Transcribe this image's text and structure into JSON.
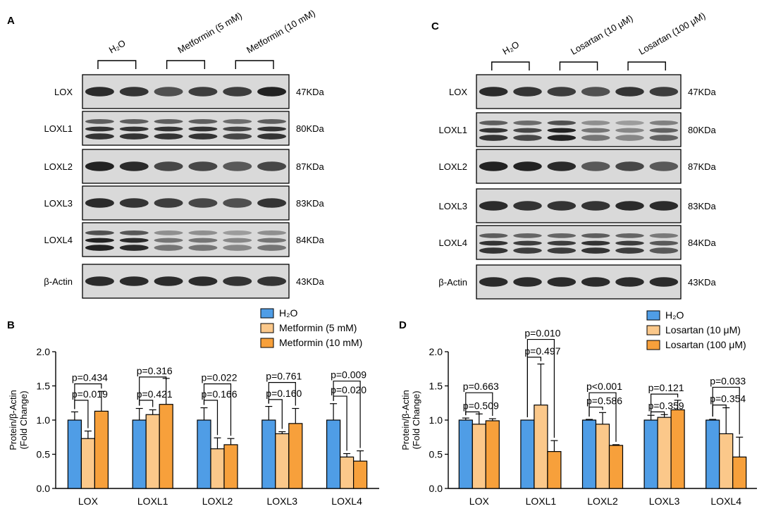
{
  "panels": {
    "A": {
      "letter": "A",
      "groups": [
        "H₂O",
        "Metformin (5 mM)",
        "Metformin (10 mM)"
      ],
      "blots": [
        {
          "label": "LOX",
          "size": "47KDa",
          "bands": [
            0.85,
            0.8,
            0.65,
            0.75,
            0.75,
            0.9
          ]
        },
        {
          "label": "LOXL1",
          "size": "80KDa",
          "bands": [
            0.8,
            0.8,
            0.8,
            0.8,
            0.7,
            0.8
          ]
        },
        {
          "label": "LOXL2",
          "size": "87KDa",
          "bands": [
            0.9,
            0.85,
            0.7,
            0.7,
            0.6,
            0.7
          ]
        },
        {
          "label": "LOXL3",
          "size": "83KDa",
          "bands": [
            0.85,
            0.8,
            0.75,
            0.7,
            0.65,
            0.8
          ]
        },
        {
          "label": "LOXL4",
          "size": "84KDa",
          "bands": [
            0.9,
            0.85,
            0.45,
            0.45,
            0.35,
            0.45
          ]
        },
        {
          "label": "β-Actin",
          "size": "43KDa",
          "bands": [
            0.85,
            0.85,
            0.85,
            0.85,
            0.8,
            0.8
          ]
        }
      ]
    },
    "C": {
      "letter": "C",
      "groups": [
        "H₂O",
        "Losartan (10 μM)",
        "Losartan (100 μM)"
      ],
      "blots": [
        {
          "label": "LOX",
          "size": "47KDa",
          "bands": [
            0.85,
            0.8,
            0.75,
            0.65,
            0.8,
            0.75
          ]
        },
        {
          "label": "LOXL1",
          "size": "80KDa",
          "bands": [
            0.8,
            0.7,
            0.9,
            0.45,
            0.35,
            0.55
          ]
        },
        {
          "label": "LOXL2",
          "size": "87KDa",
          "bands": [
            0.9,
            0.9,
            0.85,
            0.6,
            0.7,
            0.6
          ]
        },
        {
          "label": "LOXL3",
          "size": "83KDa",
          "bands": [
            0.85,
            0.8,
            0.8,
            0.8,
            0.85,
            0.85
          ]
        },
        {
          "label": "LOXL4",
          "size": "84KDa",
          "bands": [
            0.8,
            0.75,
            0.75,
            0.8,
            0.75,
            0.6
          ]
        },
        {
          "label": "β-Actin",
          "size": "43KDa",
          "bands": [
            0.85,
            0.85,
            0.85,
            0.85,
            0.85,
            0.85
          ]
        }
      ]
    }
  },
  "chart_data": [
    {
      "panel": "B",
      "type": "bar",
      "ylabel": "Protein/β-Actin",
      "ylabel2": "(Fold Change)",
      "ylim": [
        0,
        2.0
      ],
      "yticks": [
        "0.0",
        "0.5",
        "1.0",
        "1.5",
        "2.0"
      ],
      "categories": [
        "LOX",
        "LOXL1",
        "LOXL2",
        "LOXL3",
        "LOXL4"
      ],
      "legend_position": "top-right",
      "series": [
        {
          "name": "H₂O",
          "color": "#4f9de6",
          "values": [
            1.0,
            1.0,
            1.0,
            1.0,
            1.0
          ],
          "errors": [
            0.12,
            0.17,
            0.18,
            0.2,
            0.24
          ]
        },
        {
          "name": "Metformin (5 mM)",
          "color": "#fbc88a",
          "values": [
            0.73,
            1.08,
            0.58,
            0.8,
            0.46
          ],
          "errors": [
            0.11,
            0.07,
            0.16,
            0.03,
            0.05
          ]
        },
        {
          "name": "Metformin (10 mM)",
          "color": "#f7a03b",
          "values": [
            1.13,
            1.23,
            0.64,
            0.95,
            0.4
          ],
          "errors": [
            0.29,
            0.38,
            0.09,
            0.22,
            0.15
          ]
        }
      ],
      "pvalues": [
        {
          "cat": 0,
          "to": 1,
          "text": "p=0.019",
          "y": 1.29
        },
        {
          "cat": 0,
          "to": 2,
          "text": "p=0.434",
          "y": 1.53
        },
        {
          "cat": 1,
          "to": 1,
          "text": "p=0.421",
          "y": 1.29
        },
        {
          "cat": 1,
          "to": 2,
          "text": "p=0.316",
          "y": 1.63
        },
        {
          "cat": 2,
          "to": 1,
          "text": "p=0.166",
          "y": 1.29
        },
        {
          "cat": 2,
          "to": 2,
          "text": "p=0.022",
          "y": 1.53
        },
        {
          "cat": 3,
          "to": 1,
          "text": "p=0.160",
          "y": 1.3
        },
        {
          "cat": 3,
          "to": 2,
          "text": "p=0.761",
          "y": 1.55
        },
        {
          "cat": 4,
          "to": 1,
          "text": "p=0.020",
          "y": 1.35
        },
        {
          "cat": 4,
          "to": 2,
          "text": "p=0.009",
          "y": 1.57
        }
      ]
    },
    {
      "panel": "D",
      "type": "bar",
      "ylabel": "Protein/β-Actin",
      "ylabel2": "(Fold Change)",
      "ylim": [
        0,
        2.0
      ],
      "yticks": [
        "0.0",
        "0.5",
        "1.0",
        "1.5",
        "2.0"
      ],
      "categories": [
        "LOX",
        "LOXL1",
        "LOXL2",
        "LOXL3",
        "LOXL4"
      ],
      "legend_position": "top-right",
      "series": [
        {
          "name": "H₂O",
          "color": "#4f9de6",
          "values": [
            1.0,
            1.0,
            1.0,
            1.0,
            1.0
          ],
          "errors": [
            0.03,
            0.0,
            0.01,
            0.07,
            0.01
          ]
        },
        {
          "name": "Losartan (10 μM)",
          "color": "#fbc88a",
          "values": [
            0.94,
            1.22,
            0.94,
            1.04,
            0.8
          ],
          "errors": [
            0.15,
            0.6,
            0.17,
            0.04,
            0.38
          ]
        },
        {
          "name": "Losartan (100 μM)",
          "color": "#f7a03b",
          "values": [
            0.99,
            0.54,
            0.63,
            1.15,
            0.46
          ],
          "errors": [
            0.03,
            0.16,
            0.01,
            0.14,
            0.29
          ]
        }
      ],
      "pvalues": [
        {
          "cat": 0,
          "to": 1,
          "text": "p=0.509",
          "y": 1.12
        },
        {
          "cat": 0,
          "to": 2,
          "text": "p=0.663",
          "y": 1.4
        },
        {
          "cat": 1,
          "to": 1,
          "text": "p=0.497",
          "y": 1.92
        },
        {
          "cat": 1,
          "to": 2,
          "text": "p=0.010",
          "y": 2.18
        },
        {
          "cat": 2,
          "to": 1,
          "text": "p=0.586",
          "y": 1.19
        },
        {
          "cat": 2,
          "to": 2,
          "text": "p<0.001",
          "y": 1.4
        },
        {
          "cat": 3,
          "to": 1,
          "text": "p=0.359",
          "y": 1.12
        },
        {
          "cat": 3,
          "to": 2,
          "text": "p=0.121",
          "y": 1.38
        },
        {
          "cat": 4,
          "to": 1,
          "text": "p=0.354",
          "y": 1.22
        },
        {
          "cat": 4,
          "to": 2,
          "text": "p=0.033",
          "y": 1.48
        }
      ]
    }
  ]
}
